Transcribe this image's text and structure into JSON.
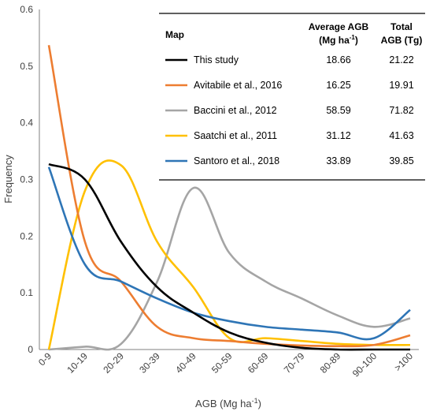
{
  "chart_data": {
    "type": "line",
    "xlabel": "AGB (Mg ha",
    "xlabel_sup": "-1",
    "xlabel_end": ")",
    "ylabel": "Frequency",
    "ylim": [
      0,
      0.6
    ],
    "yticks": [
      "0",
      "0.1",
      "0.2",
      "0.3",
      "0.4",
      "0.5",
      "0.6"
    ],
    "categories": [
      "0-9",
      "10-19",
      "20-29",
      "30-39",
      "40-49",
      "50-59",
      "60-69",
      "70-79",
      "80-89",
      "90-100",
      ">100"
    ],
    "series": [
      {
        "name": "This study",
        "color": "#000000",
        "values": [
          0.327,
          0.3,
          0.19,
          0.11,
          0.065,
          0.03,
          0.012,
          0.003,
          0.0,
          0.0,
          0.0
        ]
      },
      {
        "name": "Avitabile et al., 2016",
        "color": "#ED7D31",
        "values": [
          0.537,
          0.19,
          0.12,
          0.04,
          0.02,
          0.015,
          0.01,
          0.007,
          0.006,
          0.008,
          0.025
        ]
      },
      {
        "name": "Baccini et al., 2012",
        "color": "#A5A5A5",
        "values": [
          0.0,
          0.005,
          0.01,
          0.12,
          0.285,
          0.17,
          0.12,
          0.09,
          0.06,
          0.04,
          0.055
        ]
      },
      {
        "name": "Saatchi et al., 2011",
        "color": "#FFC000",
        "values": [
          0.0,
          0.28,
          0.325,
          0.19,
          0.11,
          0.02,
          0.02,
          0.015,
          0.01,
          0.008,
          0.008
        ]
      },
      {
        "name": "Santoro et al., 2018",
        "color": "#2E75B6",
        "values": [
          0.322,
          0.15,
          0.12,
          0.09,
          0.065,
          0.05,
          0.04,
          0.035,
          0.03,
          0.02,
          0.07
        ]
      }
    ],
    "legend_position": "top-right"
  },
  "table": {
    "header_map": "Map",
    "header_avg_line1": "Average AGB",
    "header_avg_line2": "(Mg ha",
    "header_avg_sup": "-1",
    "header_avg_end": ")",
    "header_total_line1": "Total",
    "header_total_line2": "AGB (Tg)",
    "rows": [
      {
        "name": "This study",
        "avg": "18.66",
        "total": "21.22"
      },
      {
        "name": "Avitabile et al., 2016",
        "avg": "16.25",
        "total": "19.91"
      },
      {
        "name": "Baccini et al., 2012",
        "avg": "58.59",
        "total": "71.82"
      },
      {
        "name": "Saatchi et al., 2011",
        "avg": "31.12",
        "total": "41.63"
      },
      {
        "name": "Santoro et al., 2018",
        "avg": "33.89",
        "total": "39.85"
      }
    ]
  }
}
